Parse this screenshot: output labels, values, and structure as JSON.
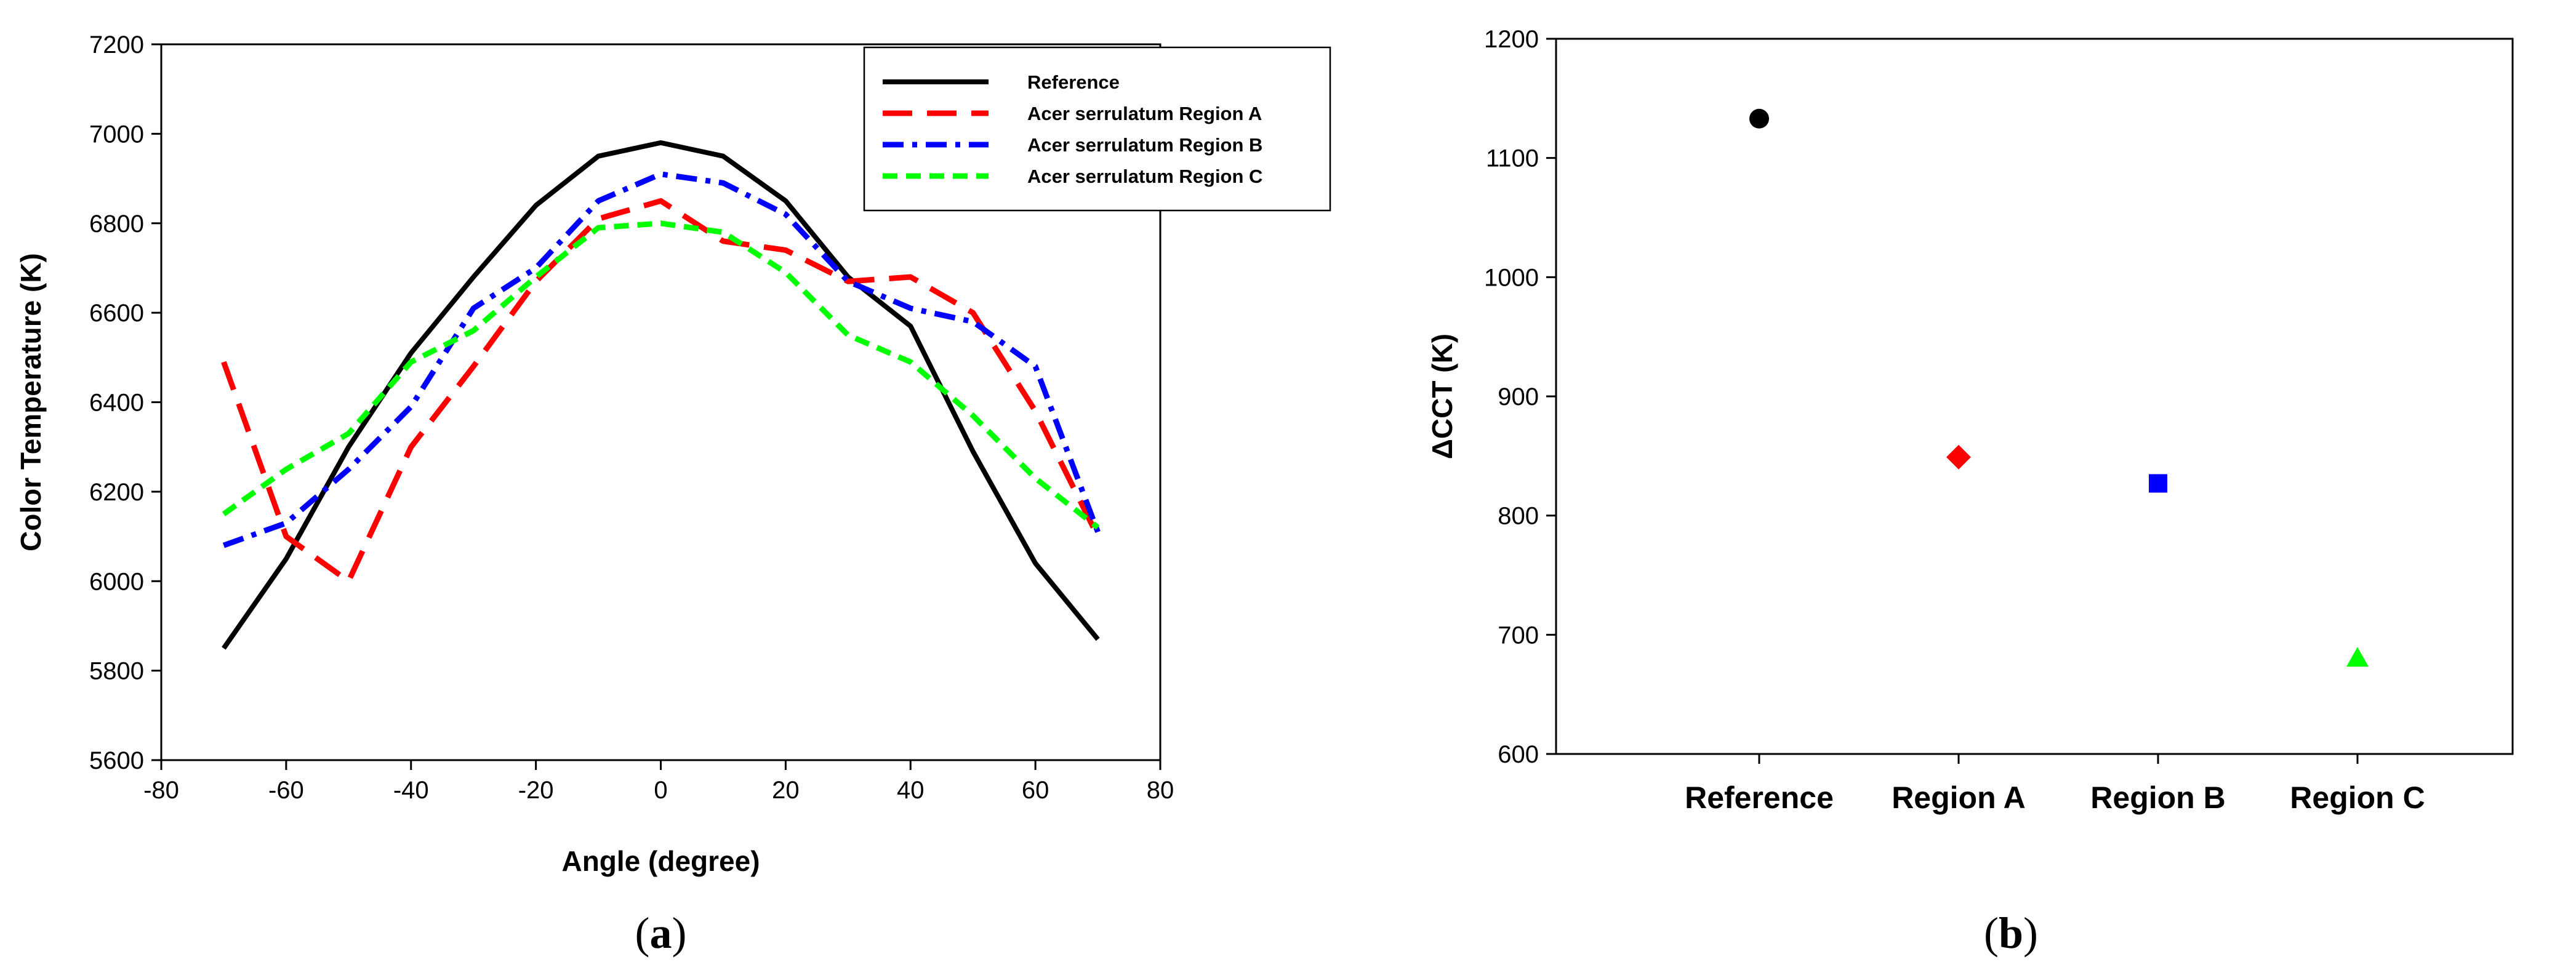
{
  "chart_data": [
    {
      "type": "line",
      "panel_label": "a",
      "xlabel": "Angle (degree)",
      "ylabel": "Color Temperature (K)",
      "xlim": [
        -80,
        80
      ],
      "ylim": [
        5600,
        7200
      ],
      "xticks": [
        -80,
        -60,
        -40,
        -20,
        0,
        20,
        40,
        60,
        80
      ],
      "yticks": [
        5600,
        5800,
        6000,
        6200,
        6400,
        6600,
        6800,
        7000,
        7200
      ],
      "legend_position": "top-right",
      "series": [
        {
          "name": "Reference",
          "color": "#000000",
          "dash": "solid",
          "x": [
            -70,
            -60,
            -50,
            -40,
            -30,
            -20,
            -10,
            0,
            10,
            20,
            30,
            40,
            50,
            60,
            70
          ],
          "y": [
            5850,
            6050,
            6300,
            6510,
            6680,
            6840,
            6950,
            6980,
            6950,
            6850,
            6680,
            6570,
            6290,
            6040,
            5870
          ]
        },
        {
          "name": "Acer serrulatum Region A",
          "color": "#ff0000",
          "dash": "long",
          "x": [
            -70,
            -60,
            -50,
            -40,
            -30,
            -20,
            -10,
            0,
            10,
            20,
            30,
            40,
            50,
            60,
            70
          ],
          "y": [
            6490,
            6100,
            6000,
            6300,
            6480,
            6670,
            6810,
            6850,
            6760,
            6740,
            6670,
            6680,
            6600,
            6380,
            6100
          ]
        },
        {
          "name": "Acer serrulatum Region B",
          "color": "#0000ff",
          "dash": "dashdot",
          "x": [
            -70,
            -60,
            -50,
            -40,
            -30,
            -20,
            -10,
            0,
            10,
            20,
            30,
            40,
            50,
            60,
            70
          ],
          "y": [
            6080,
            6130,
            6250,
            6390,
            6610,
            6700,
            6850,
            6910,
            6890,
            6820,
            6670,
            6610,
            6580,
            6480,
            6110
          ]
        },
        {
          "name": "Acer serrulatum Region C",
          "color": "#00ff00",
          "dash": "short",
          "x": [
            -70,
            -60,
            -50,
            -40,
            -30,
            -20,
            -10,
            0,
            10,
            20,
            30,
            40,
            50,
            60,
            70
          ],
          "y": [
            6150,
            6250,
            6330,
            6490,
            6560,
            6680,
            6790,
            6800,
            6780,
            6690,
            6550,
            6490,
            6370,
            6230,
            6120
          ]
        }
      ]
    },
    {
      "type": "scatter",
      "panel_label": "b",
      "xlabel": "",
      "ylabel": "ΔCCT (K)",
      "ylim": [
        600,
        1200
      ],
      "yticks": [
        600,
        700,
        800,
        900,
        1000,
        1100,
        1200
      ],
      "categories": [
        "Reference",
        "Region A",
        "Region B",
        "Region C"
      ],
      "points": [
        {
          "category": "Reference",
          "value": 1133,
          "color": "#000000",
          "marker": "circle"
        },
        {
          "category": "Region A",
          "value": 849,
          "color": "#ff0000",
          "marker": "diamond"
        },
        {
          "category": "Region B",
          "value": 827,
          "color": "#0000ff",
          "marker": "square"
        },
        {
          "category": "Region C",
          "value": 680,
          "color": "#00ff00",
          "marker": "triangle"
        }
      ]
    }
  ]
}
